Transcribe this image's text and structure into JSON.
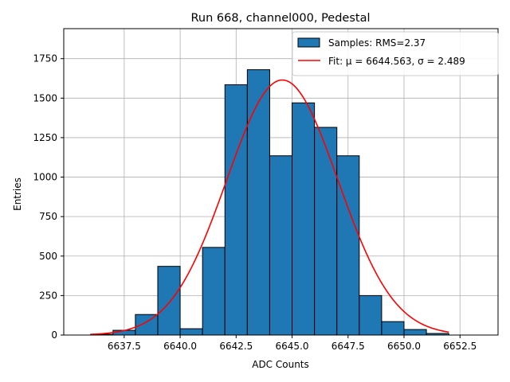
{
  "chart_data": {
    "type": "bar",
    "title": "Run 668, channel000, Pedestal",
    "xlabel": "ADC Counts",
    "ylabel": "Entries",
    "xlim": [
      6634.8,
      6654.2
    ],
    "ylim": [
      0,
      1940
    ],
    "xticks": [
      6637.5,
      6640.0,
      6642.5,
      6645.0,
      6647.5,
      6650.0,
      6652.5
    ],
    "xtick_labels": [
      "6637.5",
      "6640.0",
      "6642.5",
      "6645.0",
      "6647.5",
      "6650.0",
      "6652.5"
    ],
    "yticks": [
      0,
      250,
      500,
      750,
      1000,
      1250,
      1500,
      1750
    ],
    "ytick_labels": [
      "0",
      "250",
      "500",
      "750",
      "1000",
      "1250",
      "1500",
      "1750"
    ],
    "grid": true,
    "legend_position": "top-right",
    "series": [
      {
        "name": "Samples: RMS=2.37",
        "kind": "histogram",
        "color": "#1f77b4",
        "bin_edges": [
          6636,
          6637,
          6638,
          6639,
          6640,
          6641,
          6642,
          6643,
          6644,
          6645,
          6646,
          6647,
          6648,
          6649,
          6650,
          6651,
          6652,
          6653
        ],
        "values": [
          5,
          30,
          130,
          435,
          40,
          555,
          1585,
          1680,
          1135,
          1470,
          1315,
          1135,
          250,
          85,
          35,
          10,
          0
        ]
      },
      {
        "name": "Fit: μ = 6644.563, σ = 2.489",
        "kind": "gaussian",
        "color": "#ff0000",
        "mu": 6644.563,
        "sigma": 2.489,
        "amplitude": 1615,
        "x_range": [
          6636,
          6652
        ]
      }
    ]
  }
}
